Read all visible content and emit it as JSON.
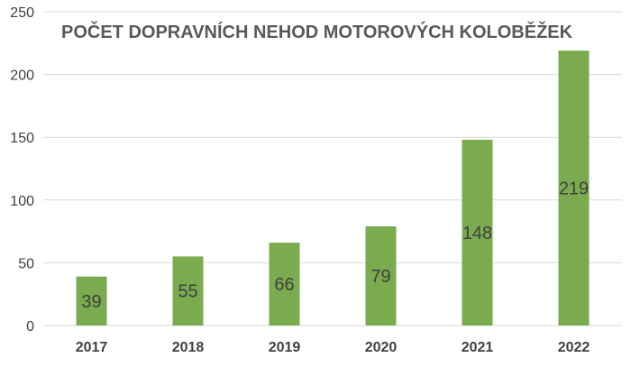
{
  "chart_data": {
    "type": "bar",
    "title": "POČET DOPRAVNÍCH NEHOD MOTOROVÝCH KOLOBĚŽEK",
    "categories": [
      "2017",
      "2018",
      "2019",
      "2020",
      "2021",
      "2022"
    ],
    "values": [
      39,
      55,
      66,
      79,
      148,
      219
    ],
    "ylim": [
      0,
      250
    ],
    "yticks": [
      0,
      50,
      100,
      150,
      200,
      250
    ],
    "xlabel": "",
    "ylabel": "",
    "grid": true,
    "legend": "none",
    "bar_color": "#7aab4f"
  }
}
